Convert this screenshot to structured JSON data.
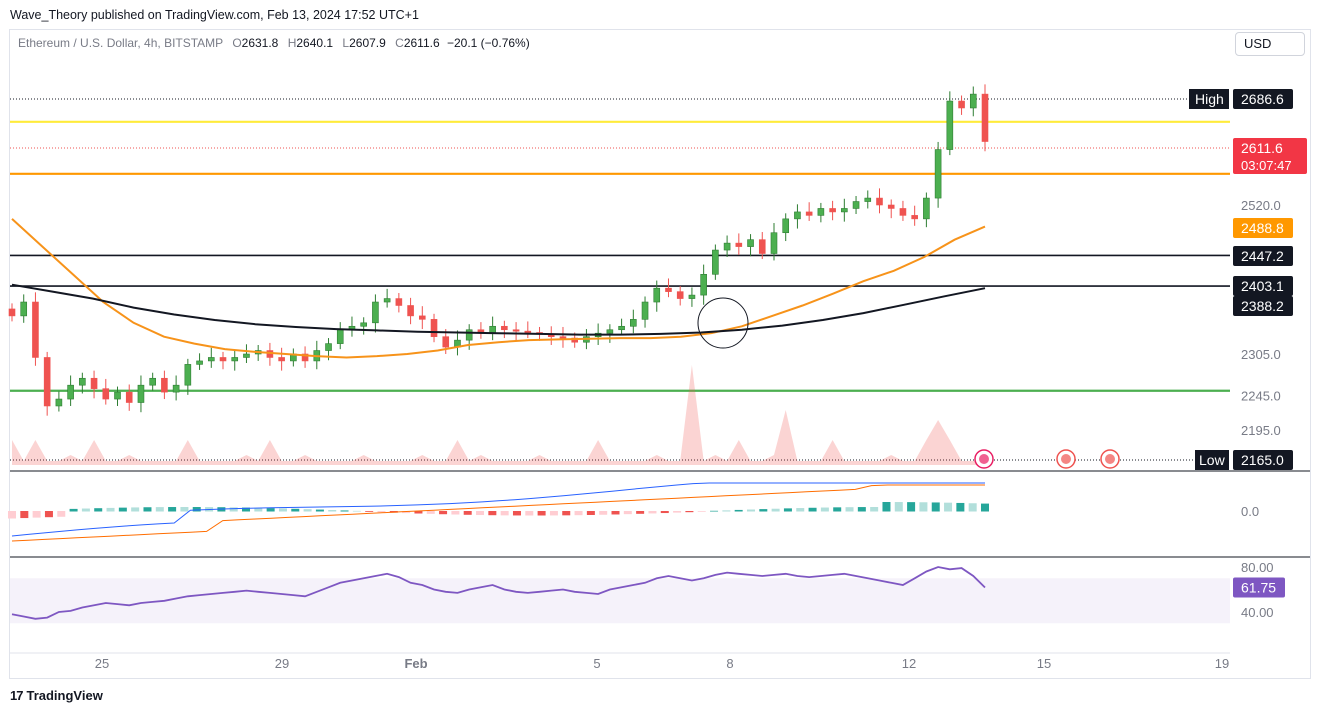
{
  "header": {
    "publisher": "Wave_Theory published on TradingView.com, Feb 13, 2024 17:52 UTC+1",
    "symbol": "Ethereum / U.S. Dollar, 4h, BITSTAMP",
    "open_label": "O",
    "open": "2631.8",
    "high_label": "H",
    "high": "2640.1",
    "low_label": "L",
    "low": "2607.9",
    "close_label": "C",
    "close": "2611.6",
    "change": "−20.1 (−0.76%)",
    "currency": "USD"
  },
  "footer": {
    "logo_text": "TradingView",
    "logo_mark": "17"
  },
  "colors": {
    "up": "#26a69a",
    "down": "#ef5350",
    "candle_up": "#2e7d32",
    "ema_orange": "#f7931a",
    "ema_black": "#131722",
    "yellow_line": "#ffeb3b",
    "orange_line": "#ff9800",
    "green_line": "#4caf50",
    "rsi": "#7e57c2",
    "macd": "#2962ff",
    "signal": "#ff6d00"
  },
  "chart_data": [
    {
      "type": "candlestick",
      "symbol": "ETH/USD",
      "x_ticks": [
        "25",
        "29",
        "Feb",
        "5",
        "8",
        "12",
        "15",
        "19"
      ],
      "y_ticks": [
        "2520.0",
        "2305.0",
        "2245.0",
        "2195.0"
      ],
      "grid": false,
      "ohlc_close_path": [
        2360,
        2380,
        2300,
        2230,
        2240,
        2260,
        2270,
        2255,
        2240,
        2250,
        2235,
        2260,
        2270,
        2250,
        2260,
        2290,
        2295,
        2300,
        2295,
        2300,
        2305,
        2310,
        2300,
        2295,
        2305,
        2295,
        2310,
        2320,
        2340,
        2345,
        2350,
        2380,
        2385,
        2375,
        2360,
        2355,
        2330,
        2315,
        2325,
        2340,
        2335,
        2345,
        2340,
        2338,
        2336,
        2334,
        2330,
        2328,
        2322,
        2330,
        2335,
        2340,
        2345,
        2355,
        2380,
        2400,
        2395,
        2385,
        2390,
        2420,
        2455,
        2465,
        2460,
        2470,
        2450,
        2480,
        2500,
        2510,
        2505,
        2515,
        2510,
        2515,
        2525,
        2530,
        2520,
        2515,
        2505,
        2500,
        2530,
        2600,
        2670,
        2660,
        2680,
        2611.6
      ],
      "horizontal_levels": [
        {
          "price": 2640,
          "color": "yellow"
        },
        {
          "price": 2565,
          "color": "orange"
        },
        {
          "price": 2447.2,
          "color": "black"
        },
        {
          "price": 2403.1,
          "color": "black"
        },
        {
          "price": 2252,
          "color": "green"
        }
      ],
      "price_labels": [
        {
          "label": "High",
          "value": "2686.6"
        },
        {
          "label": "",
          "value": "2611.6",
          "sub": "03:07:47"
        },
        {
          "label": "",
          "value": "2488.8"
        },
        {
          "label": "",
          "value": "2447.2"
        },
        {
          "label": "",
          "value": "2403.1"
        },
        {
          "label": "",
          "value": "2388.2"
        },
        {
          "label": "Low",
          "value": "2165.0"
        }
      ]
    },
    {
      "type": "histogram",
      "name": "MACD",
      "y_ticks": [
        "0.0"
      ]
    },
    {
      "type": "line",
      "name": "RSI",
      "y_ticks": [
        "80.00",
        "40.00"
      ],
      "last_value": "61.75",
      "values": [
        38,
        36,
        34,
        35,
        40,
        41,
        44,
        46,
        48,
        47,
        46,
        48,
        49,
        50,
        52,
        54,
        55,
        56,
        57,
        58,
        59,
        58,
        57,
        56,
        55,
        54,
        58,
        62,
        66,
        68,
        70,
        72,
        74,
        71,
        66,
        64,
        60,
        58,
        57,
        60,
        62,
        64,
        60,
        58,
        57,
        58,
        59,
        60,
        58,
        57,
        56,
        60,
        62,
        64,
        66,
        70,
        72,
        70,
        68,
        70,
        73,
        75,
        74,
        73,
        72,
        73,
        74,
        72,
        71,
        72,
        73,
        74,
        72,
        70,
        68,
        66,
        64,
        70,
        76,
        80,
        78,
        79,
        72,
        61.75
      ]
    }
  ]
}
